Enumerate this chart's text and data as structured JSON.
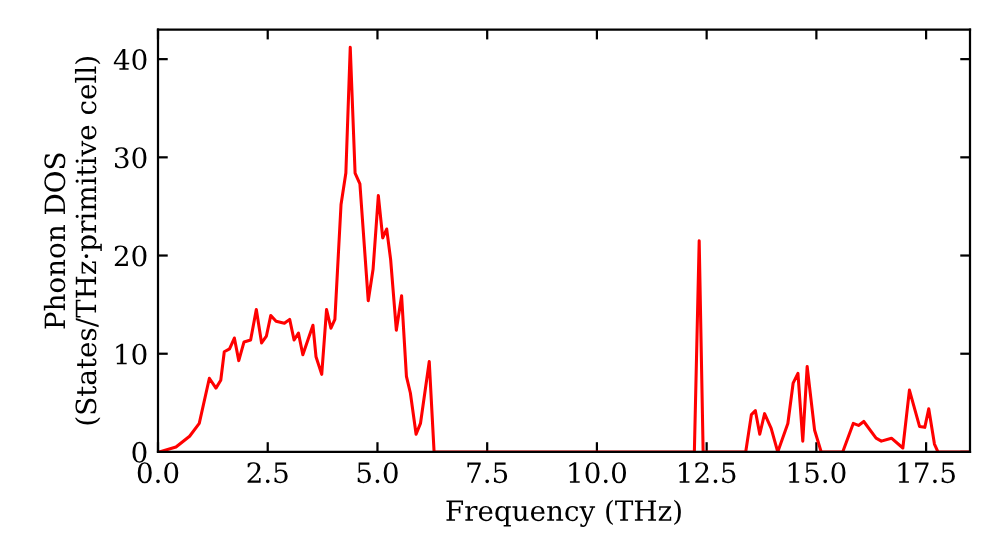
{
  "chart_data": {
    "type": "line",
    "xlabel": "Frequency (THz)",
    "ylabel": "Phonon DOS\n(States/THz·primitive cell)",
    "xlim": [
      0,
      18.5
    ],
    "ylim": [
      0,
      43
    ],
    "xticks": [
      {
        "value": 0,
        "label": "0.0"
      },
      {
        "value": 2.5,
        "label": "2.5"
      },
      {
        "value": 5,
        "label": "5.0"
      },
      {
        "value": 7.5,
        "label": "7.5"
      },
      {
        "value": 10,
        "label": "10.0"
      },
      {
        "value": 12.5,
        "label": "12.5"
      },
      {
        "value": 15,
        "label": "15.0"
      },
      {
        "value": 17.5,
        "label": "17.5"
      }
    ],
    "yticks": [
      0,
      10,
      20,
      30,
      40
    ],
    "grid": false,
    "marker": "none",
    "line_style": "solid",
    "series": [
      {
        "color": "#ff0000",
        "x": [
          0.03,
          0.41,
          0.72,
          0.94,
          1.17,
          1.32,
          1.43,
          1.51,
          1.63,
          1.74,
          1.84,
          1.96,
          2.11,
          2.24,
          2.36,
          2.47,
          2.57,
          2.69,
          2.88,
          3.0,
          3.1,
          3.2,
          3.3,
          3.53,
          3.6,
          3.73,
          3.84,
          3.94,
          4.03,
          4.17,
          4.28,
          4.38,
          4.49,
          4.6,
          4.79,
          4.9,
          5.02,
          5.12,
          5.21,
          5.3,
          5.43,
          5.55,
          5.66,
          5.75,
          5.88,
          5.98,
          6.18,
          6.29,
          12.22,
          12.33,
          12.42,
          13.39,
          13.52,
          13.61,
          13.71,
          13.82,
          13.97,
          14.12,
          14.35,
          14.47,
          14.58,
          14.69,
          14.79,
          14.96,
          15.11,
          15.6,
          15.84,
          15.96,
          16.08,
          16.36,
          16.48,
          16.71,
          16.97,
          17.12,
          17.35,
          17.47,
          17.56,
          17.69,
          17.77,
          18.5
        ],
        "values": [
          0,
          0.5,
          1.6,
          2.9,
          7.5,
          6.5,
          7.3,
          10.2,
          10.5,
          11.6,
          9.3,
          11.2,
          11.4,
          14.5,
          11.1,
          11.8,
          13.9,
          13.3,
          13.1,
          13.5,
          11.4,
          12.1,
          9.9,
          12.9,
          9.7,
          7.9,
          14.5,
          12.6,
          13.5,
          25.2,
          28.4,
          41.2,
          28.4,
          27.3,
          15.4,
          18.6,
          26.1,
          21.8,
          22.7,
          19.6,
          12.4,
          15.9,
          7.7,
          6.0,
          1.8,
          2.9,
          9.2,
          0,
          0,
          21.5,
          0,
          0,
          3.8,
          4.2,
          1.8,
          3.9,
          2.4,
          0,
          2.9,
          7.0,
          8.0,
          1.1,
          8.7,
          2.2,
          0,
          0,
          2.9,
          2.7,
          3.1,
          1.4,
          1.1,
          1.4,
          0.4,
          6.3,
          2.6,
          2.5,
          4.4,
          0.8,
          0,
          0
        ]
      }
    ]
  }
}
